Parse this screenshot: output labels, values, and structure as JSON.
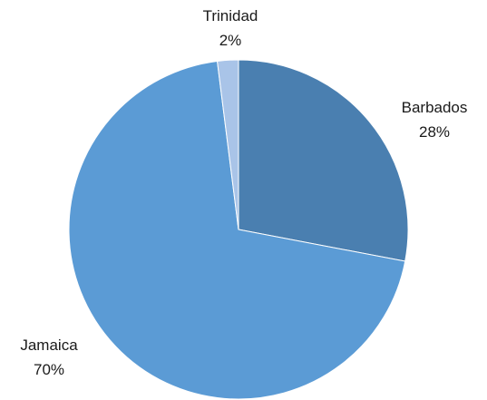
{
  "chart_data": {
    "type": "pie",
    "title": "",
    "start_angle_deg": 0,
    "direction": "clockwise",
    "legend": "none",
    "data_labels": "outside, category name and percentage",
    "slices": [
      {
        "label": "Barbados",
        "value": 28,
        "value_label": "28%",
        "color": "#4a7fb0"
      },
      {
        "label": "Jamaica",
        "value": 70,
        "value_label": "70%",
        "color": "#5b9bd5"
      },
      {
        "label": "Trinidad",
        "value": 2,
        "value_label": "2%",
        "color": "#a9c4e8"
      }
    ]
  }
}
